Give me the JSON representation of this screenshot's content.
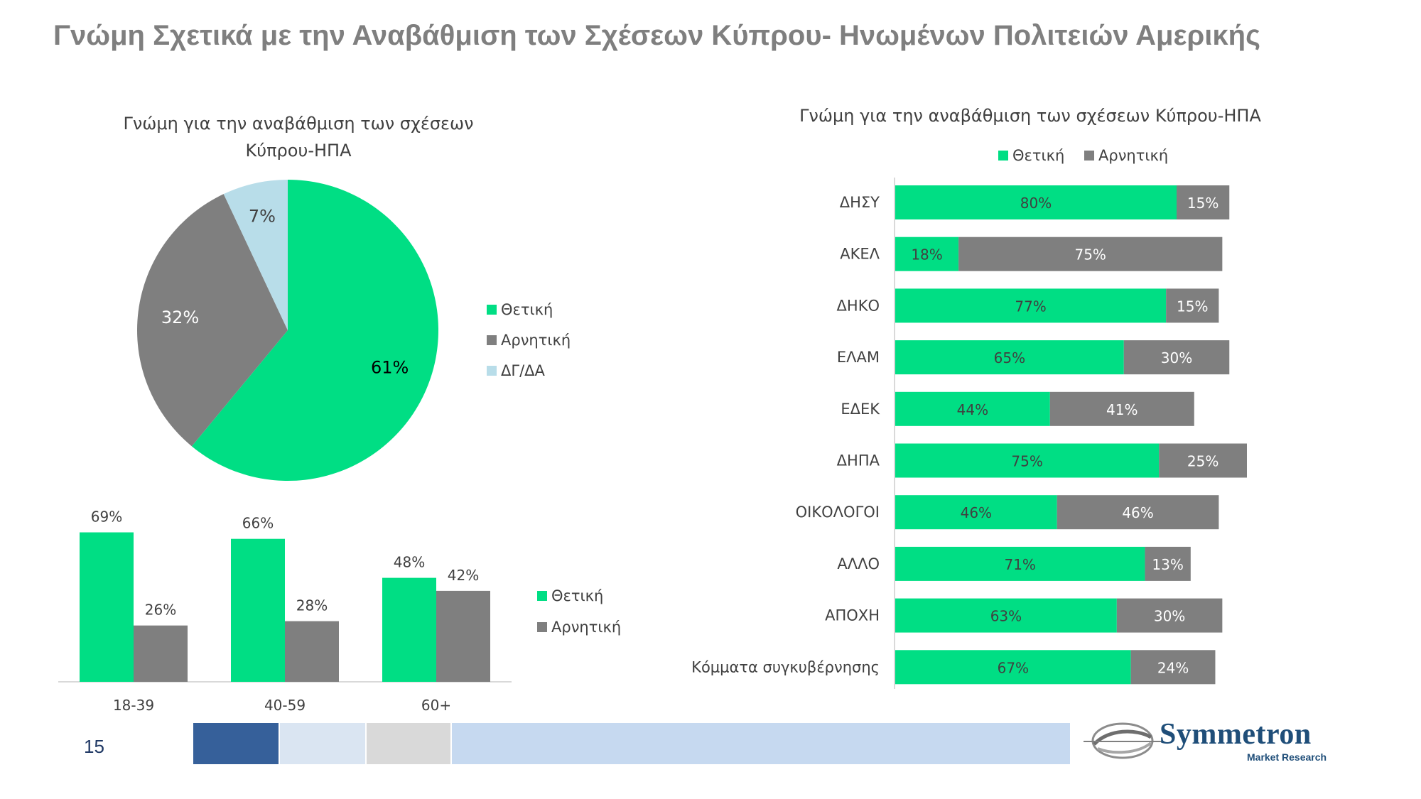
{
  "slide": {
    "title": "Γνώμη Σχετικά με την Αναβάθμιση των Σχέσεων Κύπρου- Ηνωμένων Πολιτειών Αμερικής",
    "page_number": "15",
    "logo": {
      "name": "Symmetron",
      "subtitle": "Market Research"
    },
    "band_colors": [
      "#36609a",
      "#dae5f2",
      "#d9d9d9",
      "#c6d9f0"
    ]
  },
  "colors": {
    "positive": "#00de84",
    "negative": "#7f7f7f",
    "dk": "#b8dde9"
  },
  "chart_data": [
    {
      "type": "pie",
      "title_lines": [
        "Γνώμη για την αναβάθμιση των σχέσεων",
        "Κύπρου-ΗΠΑ"
      ],
      "labels": [
        "Θετική",
        "Αρνητική",
        "ΔΓ/ΔΑ"
      ],
      "values": [
        61,
        32,
        7
      ],
      "value_labels": [
        "61%",
        "32%",
        "7%"
      ],
      "legend": "right"
    },
    {
      "type": "bar",
      "title": "",
      "categories": [
        "18-39",
        "40-59",
        "60+"
      ],
      "series": [
        {
          "name": "Θετική",
          "values": [
            69,
            66,
            48
          ],
          "labels": [
            "69%",
            "66%",
            "48%"
          ]
        },
        {
          "name": "Αρνητική",
          "values": [
            26,
            28,
            42
          ],
          "labels": [
            "26%",
            "28%",
            "42%"
          ]
        }
      ],
      "ylim": [
        0,
        75
      ],
      "legend": "right"
    },
    {
      "type": "bar",
      "orientation": "horizontal",
      "stacked": true,
      "title": "Γνώμη για την αναβάθμιση των σχέσεων Κύπρου-ΗΠΑ",
      "categories": [
        "ΔΗΣΥ",
        "ΑΚΕΛ",
        "ΔΗΚΟ",
        "ΕΛΑΜ",
        "ΕΔΕΚ",
        "ΔΗΠΑ",
        "ΟΙΚΟΛΟΓΟΙ",
        "ΑΛΛΟ",
        "ΑΠΟΧΗ",
        "Κόμματα συγκυβέρνησης"
      ],
      "series": [
        {
          "name": "Θετική",
          "values": [
            80,
            18,
            77,
            65,
            44,
            75,
            46,
            71,
            63,
            67
          ],
          "labels": [
            "80%",
            "18%",
            "77%",
            "65%",
            "44%",
            "75%",
            "46%",
            "71%",
            "63%",
            "67%"
          ]
        },
        {
          "name": "Αρνητική",
          "values": [
            15,
            75,
            15,
            30,
            41,
            25,
            46,
            13,
            30,
            24
          ],
          "labels": [
            "15%",
            "75%",
            "15%",
            "30%",
            "41%",
            "25%",
            "46%",
            "13%",
            "30%",
            "24%"
          ]
        }
      ],
      "xlim": [
        0,
        100
      ],
      "legend": "top"
    }
  ]
}
